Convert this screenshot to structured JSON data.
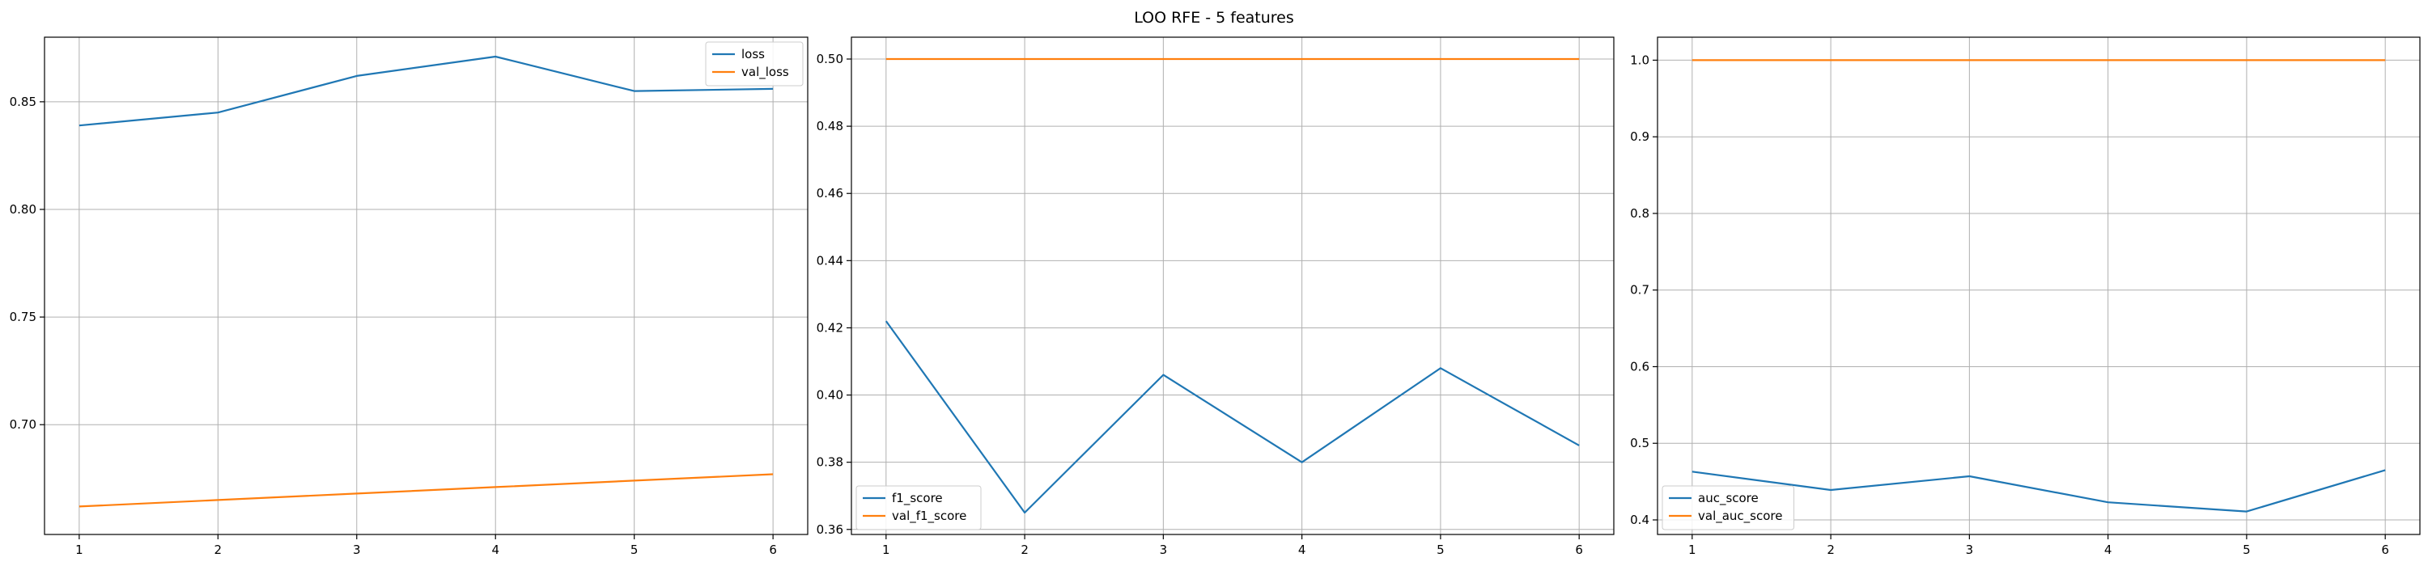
{
  "figure": {
    "title": "LOO RFE - 5 features"
  },
  "chart_data": [
    {
      "type": "line",
      "x": [
        1,
        2,
        3,
        4,
        5,
        6
      ],
      "xticks": [
        1,
        2,
        3,
        4,
        5,
        6
      ],
      "xlim": [
        0.75,
        6.25
      ],
      "ylim": [
        0.649,
        0.88
      ],
      "yticks": [
        0.7,
        0.75,
        0.8,
        0.85
      ],
      "ytick_decimals": 2,
      "grid": true,
      "legend_position": "upper right",
      "series": [
        {
          "name": "loss",
          "color": "#1f77b4",
          "values": [
            0.839,
            0.845,
            0.862,
            0.871,
            0.855,
            0.856
          ]
        },
        {
          "name": "val_loss",
          "color": "#ff7f0e",
          "values": [
            0.662,
            0.665,
            0.668,
            0.671,
            0.674,
            0.677
          ]
        }
      ]
    },
    {
      "type": "line",
      "x": [
        1,
        2,
        3,
        4,
        5,
        6
      ],
      "xticks": [
        1,
        2,
        3,
        4,
        5,
        6
      ],
      "xlim": [
        0.75,
        6.25
      ],
      "ylim": [
        0.3585,
        0.5065
      ],
      "yticks": [
        0.36,
        0.38,
        0.4,
        0.42,
        0.44,
        0.46,
        0.48,
        0.5
      ],
      "ytick_decimals": 2,
      "grid": true,
      "legend_position": "lower left",
      "series": [
        {
          "name": "f1_score",
          "color": "#1f77b4",
          "values": [
            0.422,
            0.365,
            0.406,
            0.38,
            0.408,
            0.385
          ]
        },
        {
          "name": "val_f1_score",
          "color": "#ff7f0e",
          "values": [
            0.5,
            0.5,
            0.5,
            0.5,
            0.5,
            0.5
          ]
        }
      ]
    },
    {
      "type": "line",
      "x": [
        1,
        2,
        3,
        4,
        5,
        6
      ],
      "xticks": [
        1,
        2,
        3,
        4,
        5,
        6
      ],
      "xlim": [
        0.75,
        6.25
      ],
      "ylim": [
        0.381,
        1.03
      ],
      "yticks": [
        0.4,
        0.5,
        0.6,
        0.7,
        0.8,
        0.9,
        1.0
      ],
      "ytick_decimals": 1,
      "grid": true,
      "legend_position": "lower left",
      "series": [
        {
          "name": "auc_score",
          "color": "#1f77b4",
          "values": [
            0.463,
            0.439,
            0.457,
            0.423,
            0.411,
            0.465
          ]
        },
        {
          "name": "val_auc_score",
          "color": "#ff7f0e",
          "values": [
            1.0,
            1.0,
            1.0,
            1.0,
            1.0,
            1.0
          ]
        }
      ]
    }
  ]
}
